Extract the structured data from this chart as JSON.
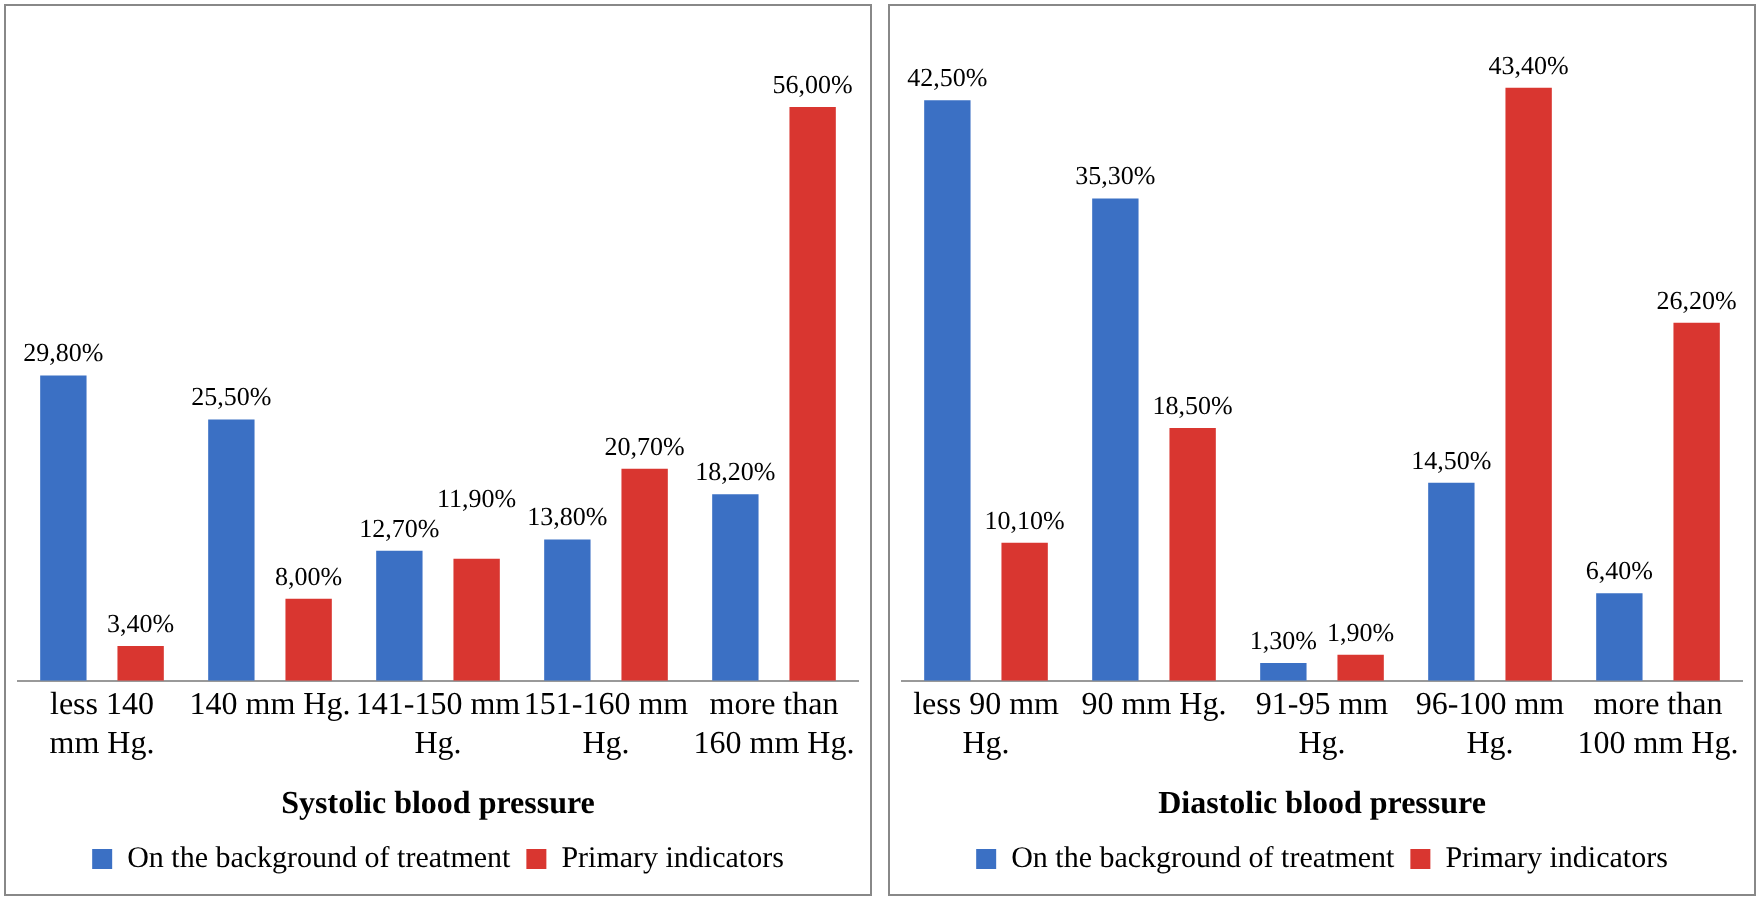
{
  "chart_data": [
    {
      "type": "bar",
      "title": "Systolic blood pressure",
      "categories": [
        "less 140 mm Hg.",
        "140 mm Hg.",
        "141-150 mm Hg.",
        "151-160 mm Hg.",
        "more than 160 mm Hg."
      ],
      "series": [
        {
          "name": "On the background of treatment",
          "color": "#3b70c4",
          "values": [
            29.8,
            25.5,
            12.7,
            13.8,
            18.2
          ],
          "value_labels": [
            "29,80%",
            "25,50%",
            "12,70%",
            "13,80%",
            "18,20%"
          ]
        },
        {
          "name": "Primary indicators",
          "color": "#d93630",
          "values": [
            3.4,
            8.0,
            11.9,
            20.7,
            56.0
          ],
          "value_labels": [
            "3,40%",
            "8,00%",
            "11,90%",
            "20,70%",
            "56,00%"
          ]
        }
      ],
      "legend": "bottom",
      "grid": false,
      "tick_labels": "x"
    },
    {
      "type": "bar",
      "title": "Diastolic blood pressure",
      "categories": [
        "less 90 mm Hg.",
        "90 mm Hg.",
        "91-95 mm Hg.",
        "96-100 mm Hg.",
        "more than 100 mm Hg."
      ],
      "series": [
        {
          "name": "On the background of treatment",
          "color": "#3b70c4",
          "values": [
            42.5,
            35.3,
            1.3,
            14.5,
            6.4
          ],
          "value_labels": [
            "42,50%",
            "35,30%",
            "1,30%",
            "14,50%",
            "6,40%"
          ]
        },
        {
          "name": "Primary indicators",
          "color": "#d93630",
          "values": [
            10.1,
            18.5,
            1.9,
            43.4,
            26.2
          ],
          "value_labels": [
            "10,10%",
            "18,50%",
            "1,90%",
            "43,40%",
            "26,20%"
          ]
        }
      ],
      "legend": "bottom",
      "grid": false,
      "tick_labels": "x"
    }
  ]
}
